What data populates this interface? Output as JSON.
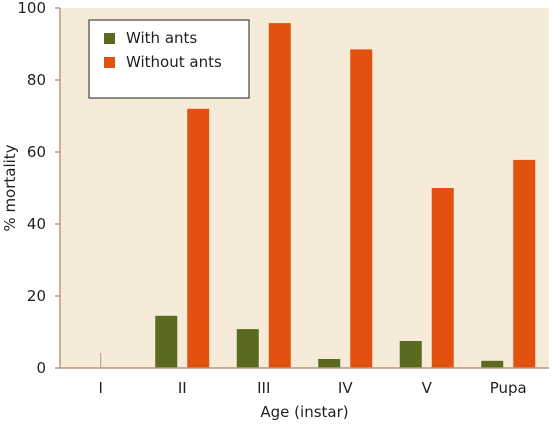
{
  "chart_data": {
    "type": "bar",
    "title": "",
    "xlabel": "Age (instar)",
    "ylabel": "% mortality",
    "ylim": [
      0,
      100
    ],
    "yticks": [
      0,
      20,
      40,
      60,
      80,
      100
    ],
    "categories": [
      "I",
      "II",
      "III",
      "IV",
      "V",
      "Pupa"
    ],
    "series": [
      {
        "name": "With ants",
        "color": "#5a6b1f",
        "values": [
          0,
          14.5,
          10.8,
          2.5,
          7.5,
          2
        ]
      },
      {
        "name": "Without ants",
        "color": "#e3510f",
        "values": [
          0,
          72,
          95.8,
          88.5,
          50,
          57.8
        ]
      }
    ],
    "legend_position": "top-left",
    "plot_background": "#f6ebd9",
    "axis_color": "#b8977a",
    "grid": false
  }
}
